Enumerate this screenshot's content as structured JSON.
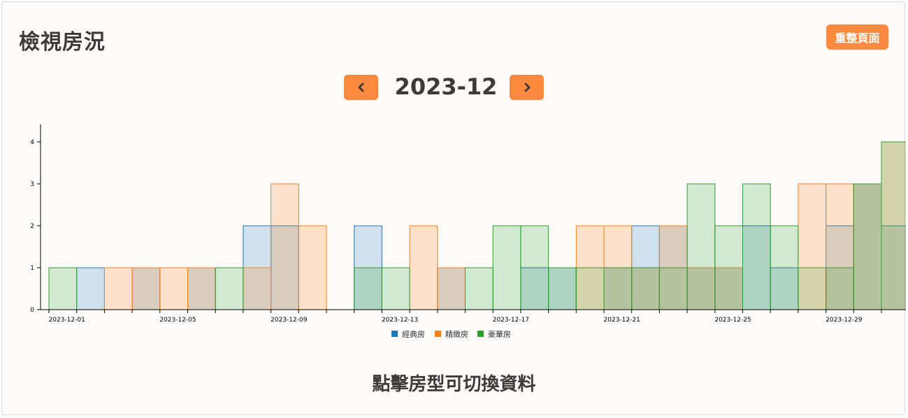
{
  "header": {
    "title": "檢視房況",
    "reset_label": "重整頁面"
  },
  "nav": {
    "month": "2023-12",
    "prev_icon": "chevron-left-icon",
    "next_icon": "chevron-right-icon"
  },
  "footer": {
    "hint": "點擊房型可切換資料"
  },
  "colors": {
    "accent": "#fb8a3e",
    "classic": "#1f77b4",
    "deluxe": "#ff7f0e",
    "luxury": "#2ca02c"
  },
  "chart_data": {
    "type": "area",
    "step": true,
    "x_tick_labels": [
      "2023-12-01",
      "2023-12-05",
      "2023-12-09",
      "2023-12-13",
      "2023-12-17",
      "2023-12-21",
      "2023-12-25",
      "2023-12-29"
    ],
    "x": [
      "2023-11-30",
      "2023-12-01",
      "2023-12-02",
      "2023-12-03",
      "2023-12-04",
      "2023-12-05",
      "2023-12-06",
      "2023-12-07",
      "2023-12-08",
      "2023-12-09",
      "2023-12-10",
      "2023-12-11",
      "2023-12-12",
      "2023-12-13",
      "2023-12-14",
      "2023-12-15",
      "2023-12-16",
      "2023-12-17",
      "2023-12-18",
      "2023-12-19",
      "2023-12-20",
      "2023-12-21",
      "2023-12-22",
      "2023-12-23",
      "2023-12-24",
      "2023-12-25",
      "2023-12-26",
      "2023-12-27",
      "2023-12-28",
      "2023-12-29",
      "2023-12-30"
    ],
    "y_ticks": [
      0,
      1,
      2,
      3,
      4
    ],
    "ylim": [
      0,
      4.4
    ],
    "series": [
      {
        "name": "經典房",
        "color": "#1f77b4",
        "values": [
          0,
          1,
          0,
          1,
          0,
          1,
          0,
          2,
          2,
          0,
          0,
          2,
          0,
          0,
          1,
          0,
          0,
          1,
          1,
          0,
          1,
          2,
          2,
          1,
          1,
          2,
          1,
          0,
          2,
          3,
          2
        ]
      },
      {
        "name": "精緻房",
        "color": "#ff7f0e",
        "values": [
          0,
          0,
          1,
          1,
          1,
          1,
          0,
          1,
          3,
          2,
          0,
          0,
          0,
          2,
          1,
          0,
          0,
          0,
          0,
          2,
          2,
          1,
          2,
          1,
          1,
          0,
          0,
          3,
          3,
          3,
          4
        ]
      },
      {
        "name": "豪華房",
        "color": "#2ca02c",
        "values": [
          1,
          0,
          0,
          0,
          0,
          0,
          1,
          0,
          0,
          0,
          0,
          1,
          1,
          0,
          0,
          1,
          2,
          2,
          1,
          1,
          1,
          1,
          1,
          3,
          2,
          3,
          2,
          1,
          1,
          3,
          4
        ]
      }
    ]
  }
}
